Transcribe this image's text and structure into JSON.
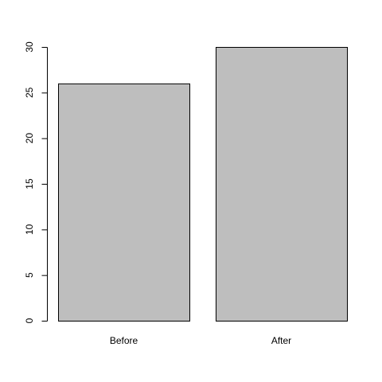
{
  "chart_data": {
    "type": "bar",
    "title": "",
    "xlabel": "",
    "ylabel": "",
    "categories": [
      "Before",
      "After"
    ],
    "values": [
      26,
      30
    ],
    "ylim": [
      0,
      30
    ],
    "yticks": [
      "0",
      "5",
      "10",
      "15",
      "20",
      "25",
      "30"
    ],
    "grid": false,
    "legend": "none",
    "bar_color": "#bebebe",
    "bar_border_color": "#000000"
  }
}
